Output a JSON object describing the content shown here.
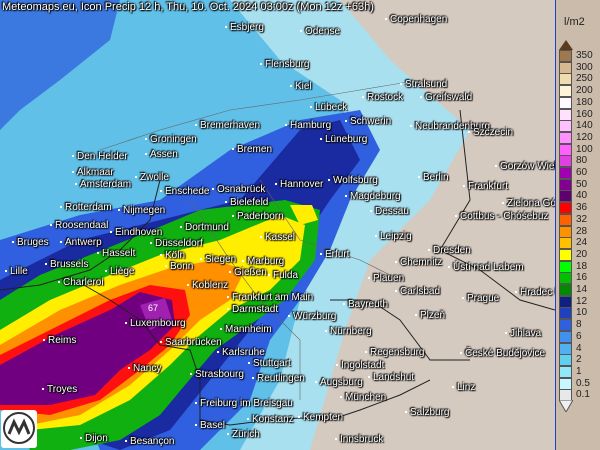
{
  "header": {
    "title": "Meteomaps.eu, Icon Precip 12 h, Thu, 10. Oct. 2024 03:00z (Mon 12z +63h)"
  },
  "map": {
    "max_value_label": "67",
    "layers_colors": {
      "land": "#d5cac0",
      "light": "#a8e0f0",
      "cyan": "#60c0e8",
      "blue": "#3060e0",
      "navy": "#1a2aa0",
      "green": "#10b010",
      "yellow": "#ffee00",
      "orange": "#ff9000",
      "red": "#ff1010",
      "purple": "#700080"
    },
    "cities": [
      "Esbjerg",
      "Odense",
      "Copenhagen",
      "Flensburg",
      "Kiel",
      "Stralsund",
      "Rostock",
      "Greifswald",
      "Lübeck",
      "Schwerin",
      "Neubrandenburg",
      "Szczecin",
      "Groningen",
      "Den Helder",
      "Assen",
      "Bremerhaven",
      "Hamburg",
      "Bremen",
      "Lüneburg",
      "Alkmaar",
      "Zwolle",
      "Amsterdam",
      "Enschede",
      "Osnabrück",
      "Hannover",
      "Wolfsburg",
      "Berlin",
      "Gorzów Wielkopolski",
      "Frankfurt",
      "Bielefeld",
      "Magdeburg",
      "Rotterdam",
      "Nijmegen",
      "Paderborn",
      "Dessau",
      "Zielona Góra",
      "Cottbus - Chóśebuz",
      "Roosendaal",
      "Eindhoven",
      "Dortmund",
      "Kassel",
      "Leipzig",
      "Bruges",
      "Antwerp",
      "Düsseldorf",
      "Dresden",
      "Hasselt",
      "Köln",
      "Bonn",
      "Siegen",
      "Marburg",
      "Erfurt",
      "Chemnitz",
      "Ústí nad Labem",
      "Brussels",
      "Lille",
      "Liège",
      "Gießen",
      "Fulda",
      "Plauen",
      "Charleroi",
      "Koblenz",
      "Carlsbad",
      "Hradec Králové",
      "Prague",
      "Frankfurt am Main",
      "Bayreuth",
      "Darmstadt",
      "Würzburg",
      "Plzeň",
      "Luxembourg",
      "Mannheim",
      "Nürnberg",
      "Jihlava",
      "Reims",
      "Saarbrücken",
      "Karlsruhe",
      "Regensburg",
      "České Budějovice",
      "Stuttgart",
      "Ingolstadt",
      "Nancy",
      "Strasbourg",
      "Reutlingen",
      "Landshut",
      "Augsburg",
      "Troyes",
      "München",
      "Linz",
      "Freiburg im Breisgau",
      "Salzburg",
      "Konstanz",
      "Kempten",
      "Basel",
      "Zürich",
      "Innsbruck",
      "Dijon",
      "Besançon"
    ]
  },
  "legend": {
    "unit": "l/m2",
    "levels": [
      {
        "v": "350",
        "c": "#a07850"
      },
      {
        "v": "300",
        "c": "#d8b890"
      },
      {
        "v": "250",
        "c": "#f0dcb0"
      },
      {
        "v": "200",
        "c": "#fff4d8"
      },
      {
        "v": "180",
        "c": "#fff8ff"
      },
      {
        "v": "160",
        "c": "#ffe0ff"
      },
      {
        "v": "140",
        "c": "#ffc0ff"
      },
      {
        "v": "120",
        "c": "#ff90ff"
      },
      {
        "v": "100",
        "c": "#ff60ff"
      },
      {
        "v": "80",
        "c": "#e040e0"
      },
      {
        "v": "60",
        "c": "#a000b0"
      },
      {
        "v": "50",
        "c": "#800090"
      },
      {
        "v": "40",
        "c": "#600070"
      },
      {
        "v": "36",
        "c": "#ff0000"
      },
      {
        "v": "32",
        "c": "#ff6000"
      },
      {
        "v": "28",
        "c": "#ff9000"
      },
      {
        "v": "24",
        "c": "#ffc000"
      },
      {
        "v": "20",
        "c": "#ffff00"
      },
      {
        "v": "18",
        "c": "#00ff00"
      },
      {
        "v": "16",
        "c": "#00c000"
      },
      {
        "v": "14",
        "c": "#008a00"
      },
      {
        "v": "12",
        "c": "#102080"
      },
      {
        "v": "10",
        "c": "#2040c0"
      },
      {
        "v": "8",
        "c": "#3060e0"
      },
      {
        "v": "6",
        "c": "#4090f0"
      },
      {
        "v": "4",
        "c": "#50b0f0"
      },
      {
        "v": "2",
        "c": "#60d0f0"
      },
      {
        "v": "1",
        "c": "#90e8f8"
      },
      {
        "v": "0.5",
        "c": "#c8f8ff"
      },
      {
        "v": "0.1",
        "c": "#e8e8e8"
      }
    ]
  }
}
